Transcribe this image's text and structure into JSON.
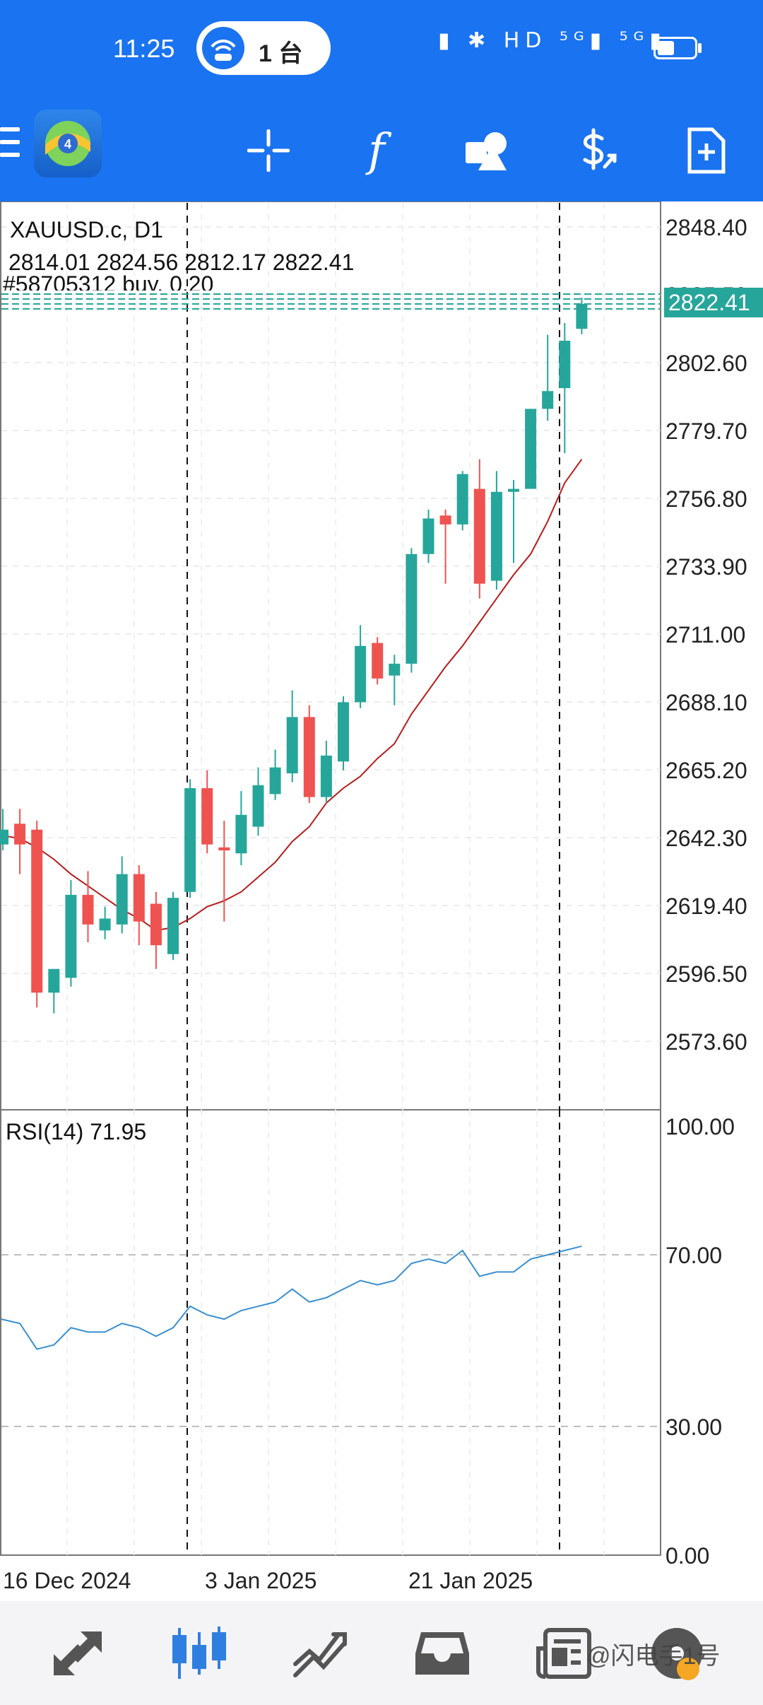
{
  "status_bar": {
    "time": "11:25",
    "hotspot_label": "1 台",
    "icons": [
      "vibrate-icon",
      "bluetooth-icon",
      "hd-icon",
      "5g-signal-icon",
      "5g-signal-icon",
      "battery-icon"
    ],
    "icons_text": "▮ ✱ HD ⁵ᴳ▮ ⁵ᴳ▮",
    "battery_level": 0.45
  },
  "toolbar": {
    "buttons": [
      "menu-icon",
      "app-logo",
      "crosshair-icon",
      "indicator-f-icon",
      "objects-icon",
      "trade-dollar-icon",
      "new-order-icon"
    ],
    "indicator_label": "f"
  },
  "chart": {
    "symbol_label": "XAUUSD.c, D1",
    "ohlc_label": "2814.01 2824.56 2812.17 2822.41",
    "order_label": "#58705312 buy, 0.20",
    "current_price": "2822.41",
    "price_ticks": [
      "2848.40",
      "2825.50",
      "2802.60",
      "2779.70",
      "2756.80",
      "2733.90",
      "2711.00",
      "2688.10",
      "2665.20",
      "2642.30",
      "2619.40",
      "2596.50",
      "2573.60"
    ],
    "rsi_label": "RSI(14) 71.95",
    "rsi_ticks": [
      "100.00",
      "70.00",
      "30.00",
      "0.00"
    ],
    "date_labels": [
      "16 Dec 2024",
      "3 Jan 2025",
      "21 Jan 2025"
    ],
    "colors": {
      "bull": "#26a69a",
      "bear": "#ef5350",
      "ma": "#b71c1c",
      "rsi": "#3a8fd0",
      "price_line": "#26a69a"
    }
  },
  "chart_data": {
    "type": "candlestick",
    "title": "XAUUSD.c, D1",
    "y_range": [
      2550,
      2855
    ],
    "candles": [
      {
        "o": 2640,
        "h": 2652,
        "l": 2638,
        "c": 2645
      },
      {
        "o": 2647,
        "h": 2652,
        "l": 2630,
        "c": 2640
      },
      {
        "o": 2645,
        "h": 2648,
        "l": 2585,
        "c": 2590
      },
      {
        "o": 2590,
        "h": 2596,
        "l": 2583,
        "c": 2598
      },
      {
        "o": 2595,
        "h": 2628,
        "l": 2592,
        "c": 2623
      },
      {
        "o": 2623,
        "h": 2631,
        "l": 2607,
        "c": 2613
      },
      {
        "o": 2611,
        "h": 2619,
        "l": 2608,
        "c": 2615
      },
      {
        "o": 2613,
        "h": 2636,
        "l": 2610,
        "c": 2630
      },
      {
        "o": 2630,
        "h": 2633,
        "l": 2606,
        "c": 2614
      },
      {
        "o": 2620,
        "h": 2624,
        "l": 2598,
        "c": 2606
      },
      {
        "o": 2603,
        "h": 2624,
        "l": 2601,
        "c": 2622
      },
      {
        "o": 2624,
        "h": 2662,
        "l": 2622,
        "c": 2659
      },
      {
        "o": 2659,
        "h": 2665,
        "l": 2637,
        "c": 2640
      },
      {
        "o": 2639,
        "h": 2648,
        "l": 2614,
        "c": 2638
      },
      {
        "o": 2637,
        "h": 2658,
        "l": 2633,
        "c": 2650
      },
      {
        "o": 2646,
        "h": 2666,
        "l": 2643,
        "c": 2660
      },
      {
        "o": 2657,
        "h": 2672,
        "l": 2655,
        "c": 2666
      },
      {
        "o": 2664,
        "h": 2692,
        "l": 2661,
        "c": 2683
      },
      {
        "o": 2683,
        "h": 2687,
        "l": 2654,
        "c": 2656
      },
      {
        "o": 2656,
        "h": 2675,
        "l": 2654,
        "c": 2670
      },
      {
        "o": 2668,
        "h": 2690,
        "l": 2665,
        "c": 2688
      },
      {
        "o": 2688,
        "h": 2714,
        "l": 2686,
        "c": 2707
      },
      {
        "o": 2708,
        "h": 2710,
        "l": 2694,
        "c": 2696
      },
      {
        "o": 2697,
        "h": 2704,
        "l": 2687,
        "c": 2701
      },
      {
        "o": 2701,
        "h": 2740,
        "l": 2698,
        "c": 2738
      },
      {
        "o": 2738,
        "h": 2753,
        "l": 2735,
        "c": 2750
      },
      {
        "o": 2751,
        "h": 2753,
        "l": 2728,
        "c": 2748
      },
      {
        "o": 2748,
        "h": 2766,
        "l": 2746,
        "c": 2765
      },
      {
        "o": 2760,
        "h": 2770,
        "l": 2723,
        "c": 2728
      },
      {
        "o": 2729,
        "h": 2766,
        "l": 2726,
        "c": 2759
      },
      {
        "o": 2759,
        "h": 2763,
        "l": 2735,
        "c": 2760
      },
      {
        "o": 2760,
        "h": 2787,
        "l": 2760,
        "c": 2787
      },
      {
        "o": 2787,
        "h": 2812,
        "l": 2783,
        "c": 2793
      },
      {
        "o": 2794,
        "h": 2816,
        "l": 2772,
        "c": 2810
      },
      {
        "o": 2814.01,
        "h": 2824.56,
        "l": 2812.17,
        "c": 2822.41
      }
    ],
    "ma": [
      2643,
      2642,
      2639,
      2635,
      2630,
      2626,
      2622,
      2618,
      2615,
      2611,
      2612,
      2615,
      2619,
      2621,
      2624,
      2629,
      2634,
      2641,
      2646,
      2654,
      2659,
      2663,
      2669,
      2674,
      2684,
      2692,
      2700,
      2707,
      2715,
      2723,
      2731,
      2738,
      2749,
      2762,
      2770
    ],
    "rsi": [
      55,
      54,
      48,
      49,
      53,
      52,
      52,
      54,
      53,
      51,
      53,
      58,
      56,
      55,
      57,
      58,
      59,
      62,
      59,
      60,
      62,
      64,
      63,
      64,
      68,
      69,
      68,
      71,
      65,
      66,
      66,
      69,
      70,
      71,
      72
    ],
    "rsi_range": [
      0,
      100
    ],
    "rsi_levels": [
      70,
      30
    ]
  },
  "bottom_nav": {
    "items": [
      "quotes-icon",
      "chart-icon",
      "trade-icon",
      "history-icon",
      "news-icon",
      "messages-icon"
    ]
  },
  "watermark": "@闪电手1号"
}
